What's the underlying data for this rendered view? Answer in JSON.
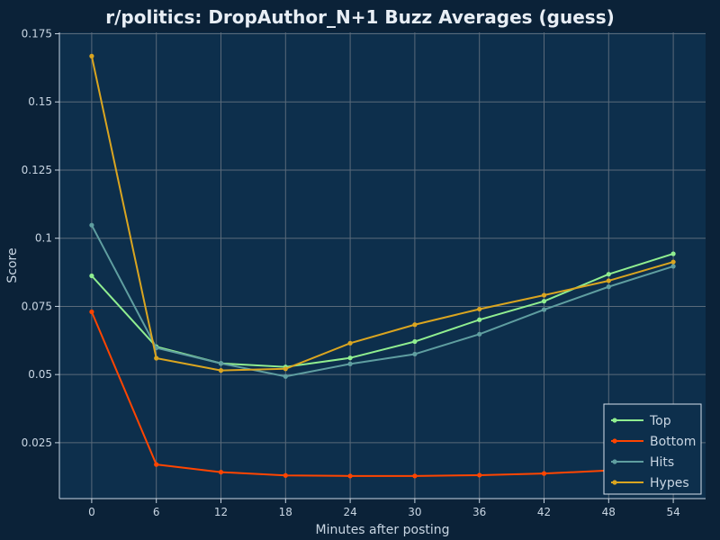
{
  "chart_data": {
    "type": "line",
    "title": "r/politics: DropAuthor_N+1 Buzz Averages (guess)",
    "xlabel": "Minutes after posting",
    "ylabel": "Score",
    "x": [
      0,
      6,
      12,
      18,
      24,
      30,
      36,
      42,
      48,
      54
    ],
    "xticks": [
      "0",
      "6",
      "12",
      "18",
      "24",
      "30",
      "36",
      "42",
      "48",
      "54"
    ],
    "yticks": [
      0.025,
      0.05,
      0.075,
      0.1,
      0.125,
      0.15,
      0.175
    ],
    "ytick_labels": [
      "0.025",
      "0.05",
      "0.075",
      "0.1",
      "0.125",
      "0.15",
      "0.175"
    ],
    "xlim": [
      -3,
      57
    ],
    "ylim": [
      0.0045,
      0.1755
    ],
    "grid": true,
    "legend_position": "bottom-right",
    "series": [
      {
        "name": "Top",
        "color": "#90ee90",
        "values": [
          0.0862,
          0.0602,
          0.0541,
          0.0528,
          0.0561,
          0.0621,
          0.0701,
          0.0769,
          0.0868,
          0.0943
        ]
      },
      {
        "name": "Bottom",
        "color": "#ff4500",
        "values": [
          0.073,
          0.017,
          0.0142,
          0.013,
          0.0128,
          0.0128,
          0.0131,
          0.0137,
          0.0148,
          0.0158
        ]
      },
      {
        "name": "Hits",
        "color": "#5f9ea0",
        "values": [
          0.1048,
          0.0598,
          0.0541,
          0.0493,
          0.0539,
          0.0575,
          0.0648,
          0.0738,
          0.0822,
          0.0897
        ]
      },
      {
        "name": "Hypes",
        "color": "#daa520",
        "values": [
          0.1668,
          0.056,
          0.0515,
          0.0521,
          0.0615,
          0.0683,
          0.074,
          0.0791,
          0.0844,
          0.0913
        ]
      }
    ]
  },
  "colors": {
    "background": "#0b2238",
    "plot_background": "#0d2f4c",
    "grid": "#5a6a7a",
    "text": "#c9d6e3",
    "title": "#e8eef5"
  }
}
